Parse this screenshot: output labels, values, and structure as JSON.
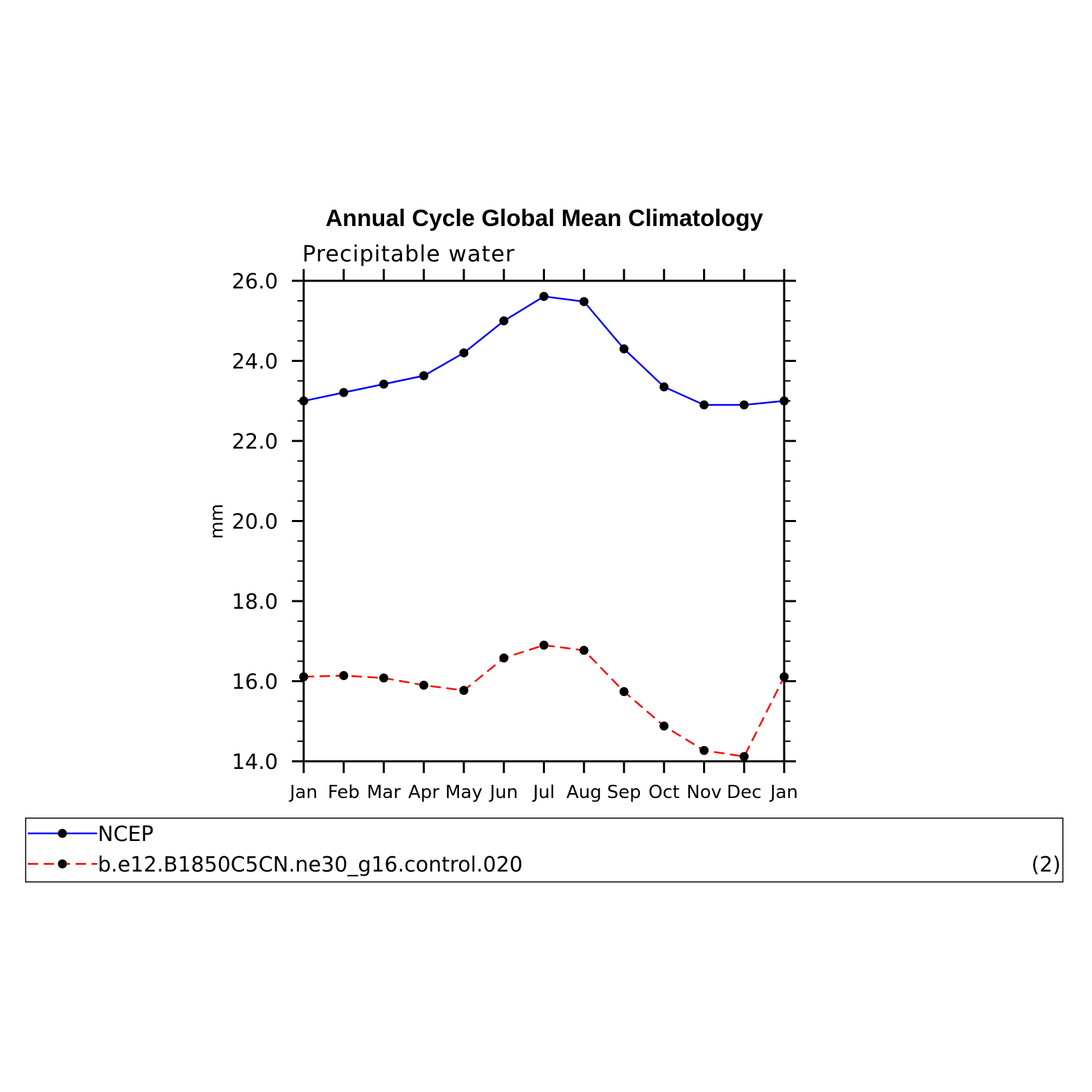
{
  "chart_data": {
    "type": "line",
    "title": "Annual Cycle Global Mean Climatology",
    "subtitle": "Precipitable water",
    "xlabel": "",
    "ylabel": "mm",
    "categories": [
      "Jan",
      "Feb",
      "Mar",
      "Apr",
      "May",
      "Jun",
      "Jul",
      "Aug",
      "Sep",
      "Oct",
      "Nov",
      "Dec",
      "Jan"
    ],
    "ylim": [
      14.0,
      26.0
    ],
    "yticks": [
      "14.0",
      "16.0",
      "18.0",
      "20.0",
      "22.0",
      "24.0",
      "26.0"
    ],
    "series": [
      {
        "name": "NCEP",
        "color": "#0000ff",
        "dash": "solid",
        "values": [
          23.0,
          23.21,
          23.42,
          23.63,
          24.2,
          25.0,
          25.61,
          25.48,
          24.3,
          23.35,
          22.9,
          22.9,
          23.0
        ]
      },
      {
        "name": "b.e12.B1850C5CN.ne30_g16.control.020",
        "color": "#ff0000",
        "dash": "dashed",
        "values": [
          16.11,
          16.14,
          16.08,
          15.9,
          15.77,
          16.58,
          16.9,
          16.77,
          15.74,
          14.88,
          14.27,
          14.12,
          16.11
        ]
      }
    ],
    "legend_placement": "bottom",
    "legend_note": "(2)",
    "grid": false
  }
}
